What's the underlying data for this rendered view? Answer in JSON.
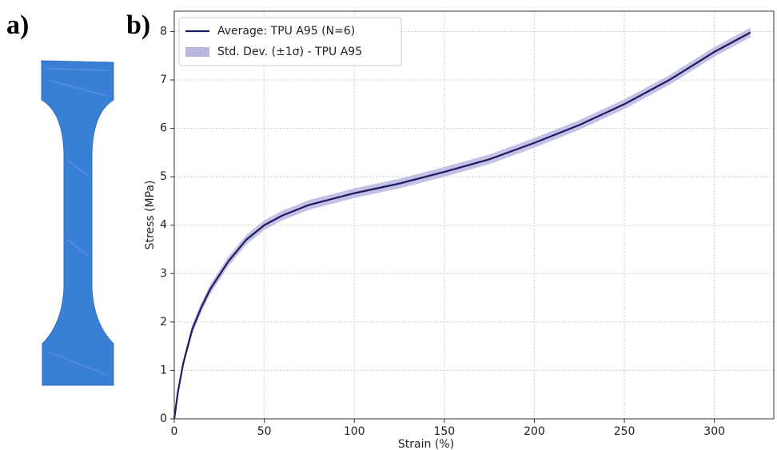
{
  "panels": {
    "a": "a)",
    "b": "b)"
  },
  "chart_data": {
    "type": "line",
    "xlabel": "Strain (%)",
    "ylabel": "Stress (MPa)",
    "x": [
      0,
      2,
      5,
      10,
      15,
      20,
      30,
      40,
      50,
      60,
      75,
      100,
      125,
      150,
      175,
      200,
      225,
      250,
      275,
      300,
      320
    ],
    "series": [
      {
        "name": "Average: TPU A95 (N=6)",
        "color": "#1c1c5e",
        "values": [
          0,
          0.55,
          1.15,
          1.85,
          2.3,
          2.68,
          3.25,
          3.7,
          4.0,
          4.2,
          4.42,
          4.66,
          4.86,
          5.1,
          5.36,
          5.7,
          6.07,
          6.5,
          7.0,
          7.58,
          7.98
        ]
      },
      {
        "name": "Std. Dev. (±1σ) - TPU A95",
        "color": "#b9b6e0",
        "values": [
          0,
          0.05,
          0.08,
          0.1,
          0.1,
          0.1,
          0.1,
          0.1,
          0.1,
          0.1,
          0.1,
          0.1,
          0.1,
          0.1,
          0.1,
          0.1,
          0.1,
          0.1,
          0.1,
          0.1,
          0.1
        ]
      }
    ],
    "xlim": [
      0,
      333
    ],
    "ylim": [
      0,
      8.42
    ],
    "xticks": [
      0,
      50,
      100,
      150,
      200,
      250,
      300
    ],
    "yticks": [
      0,
      1,
      2,
      3,
      4,
      5,
      6,
      7,
      8
    ],
    "grid": true,
    "legend": "upper left"
  }
}
